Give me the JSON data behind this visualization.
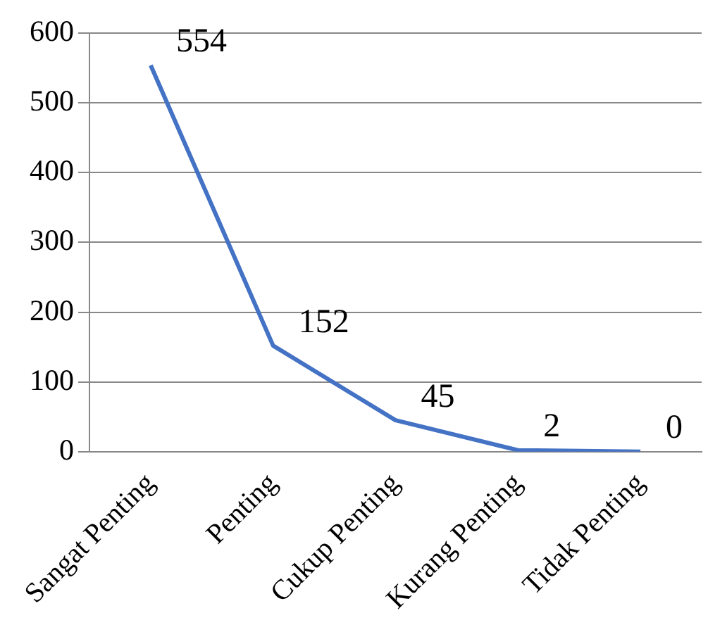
{
  "chart_data": {
    "type": "line",
    "categories": [
      "Sangat Penting",
      "Penting",
      "Cukup Penting",
      "Kurang Penting",
      "Tidak Penting"
    ],
    "series": [
      {
        "color": "#4472c4",
        "values": [
          554,
          152,
          45,
          2,
          0
        ]
      }
    ],
    "ylim": [
      0,
      600
    ],
    "yticks": [
      0,
      100,
      200,
      300,
      400,
      500,
      600
    ],
    "grid": "y",
    "legend": false,
    "data_labels": true,
    "marker": "none",
    "line_style": "solid"
  }
}
